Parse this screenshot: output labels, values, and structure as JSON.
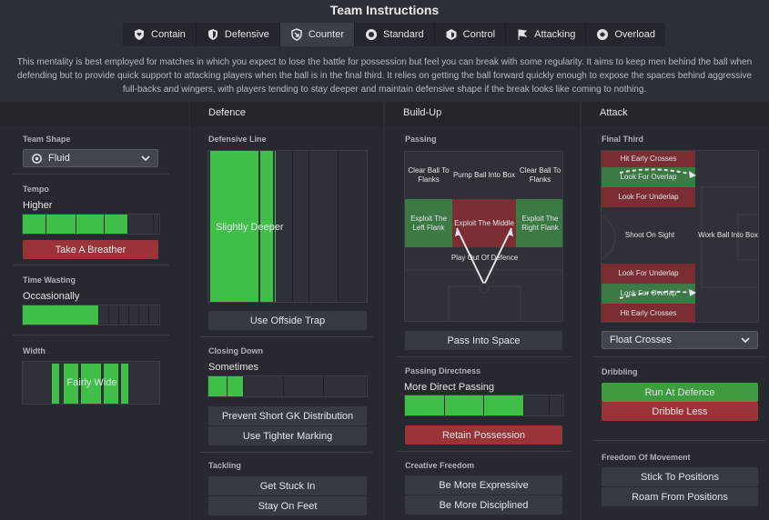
{
  "title": "Team Instructions",
  "tabs": [
    {
      "label": "Contain",
      "icon": "shield-heart-icon"
    },
    {
      "label": "Defensive",
      "icon": "shield-icon"
    },
    {
      "label": "Counter",
      "icon": "counter-arrow-icon"
    },
    {
      "label": "Standard",
      "icon": "circle-target-icon"
    },
    {
      "label": "Control",
      "icon": "hexagon-icon"
    },
    {
      "label": "Attacking",
      "icon": "flag-icon"
    },
    {
      "label": "Overload",
      "icon": "swirl-icon"
    }
  ],
  "active_tab": "Counter",
  "description": "This mentality is best employed for matches in which you expect to lose the battle for possession but feel you can break with some regularity.  It aims to keep men behind the ball when defending but to provide quick support to attacking players when the ball is in the final third. It relies on getting the ball forward quickly enough to expose the spaces behind aggressive full-backs and wingers, with players tending to stay deeper and maintain defensive shape if the break looks like coming to nothing.",
  "general": {
    "team_shape_label": "Team Shape",
    "team_shape_value": "Fluid",
    "tempo_label": "Tempo",
    "tempo_value": "Higher",
    "tempo_button": "Take A Breather",
    "time_wasting_label": "Time Wasting",
    "time_wasting_value": "Occasionally",
    "width_label": "Width",
    "width_value": "Fairly Wide"
  },
  "defence": {
    "header": "Defence",
    "defensive_line_label": "Defensive Line",
    "defensive_line_value": "Slightly Deeper",
    "offside_button": "Use Offside Trap",
    "closing_down_label": "Closing Down",
    "closing_down_value": "Sometimes",
    "gk_button": "Prevent Short GK Distribution",
    "marking_button": "Use Tighter Marking",
    "tackling_label": "Tackling",
    "get_stuck_in": "Get Stuck In",
    "stay_on_feet": "Stay On Feet"
  },
  "buildup": {
    "header": "Build-Up",
    "passing_label": "Passing",
    "cells": {
      "clear_left": "Clear Ball To Flanks",
      "pump": "Pump Ball Into Box",
      "clear_right": "Clear Ball To Flanks",
      "exploit_left": "Exploit The Left Flank",
      "exploit_middle": "Exploit The Middle",
      "exploit_right": "Exploit The Right Flank",
      "play_out": "Play Out Of Defence"
    },
    "space_button": "Pass Into Space",
    "directness_label": "Passing Directness",
    "directness_value": "More Direct Passing",
    "retain_button": "Retain Possession",
    "creative_label": "Creative Freedom",
    "expressive_button": "Be More Expressive",
    "disciplined_button": "Be More Disciplined"
  },
  "attack": {
    "header": "Attack",
    "final_third_label": "Final Third",
    "cells": {
      "early_crosses_top": "Hit Early Crosses",
      "overlap_top": "Look For Overlap",
      "underlap_top": "Look For Underlap",
      "shoot": "Shoot On Sight",
      "work_ball": "Work Ball Into Box",
      "underlap_bottom": "Look For Underlap",
      "overlap_bottom": "Look For Overlap",
      "early_crosses_bottom": "Hit Early Crosses"
    },
    "crosses_dropdown": "Float Crosses",
    "dribbling_label": "Dribbling",
    "run_at_defence": "Run At Defence",
    "dribble_less": "Dribble Less",
    "freedom_label": "Freedom Of Movement",
    "stick_button": "Stick To Positions",
    "roam_button": "Roam From Positions"
  },
  "colors": {
    "green": "#3fbf48",
    "red": "#9a3438",
    "panel": "#262a30"
  }
}
